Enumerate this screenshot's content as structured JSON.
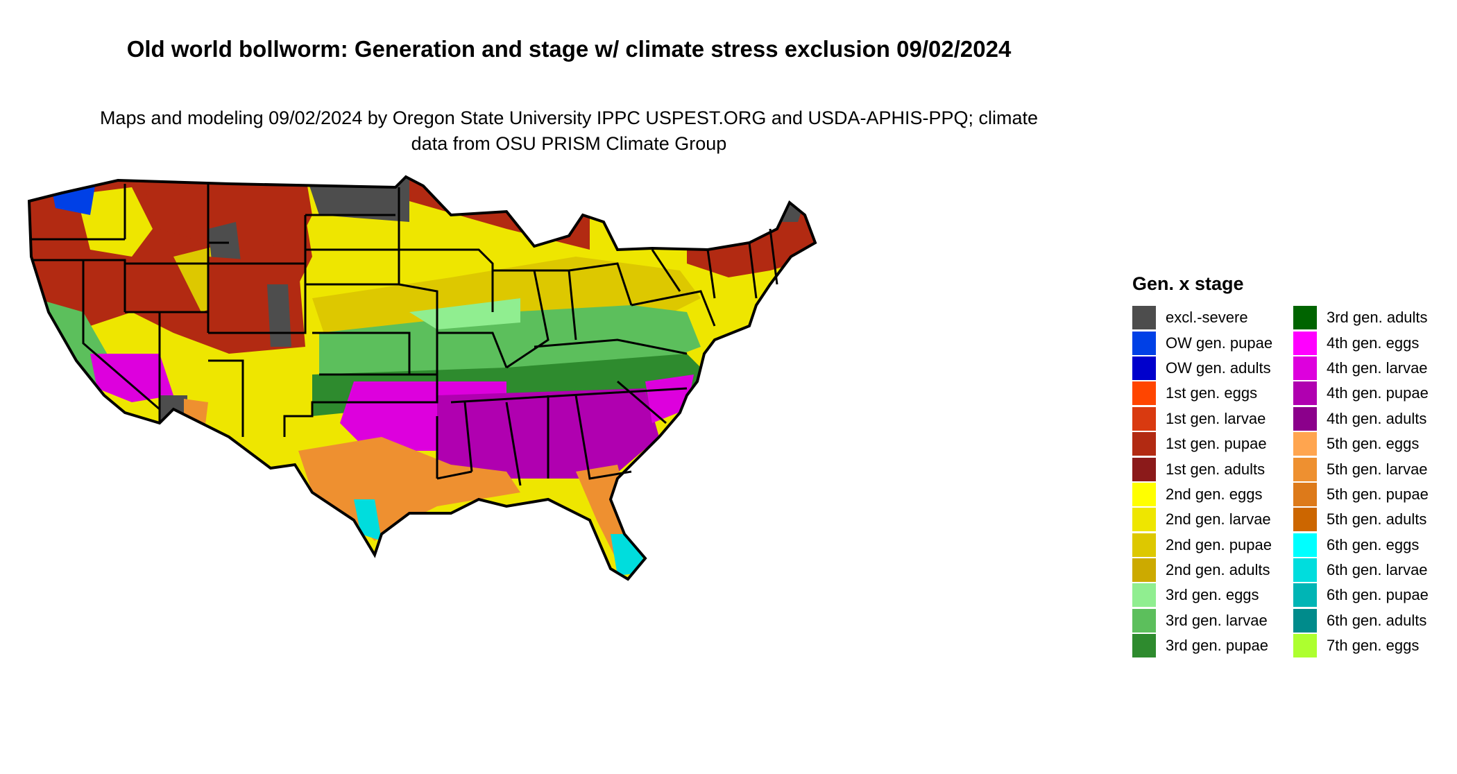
{
  "title": "Old world bollworm: Generation and stage w/ climate stress exclusion 09/02/2024",
  "subtitle": "Maps and modeling 09/02/2024 by Oregon State University IPPC USPEST.ORG and USDA-APHIS-PPQ; climate data from OSU PRISM Climate Group",
  "legend": {
    "title": "Gen. x stage",
    "column1": [
      {
        "label": "excl.-severe",
        "color": "#4d4d4d"
      },
      {
        "label": "OW gen. pupae",
        "color": "#0040e6"
      },
      {
        "label": "OW gen. adults",
        "color": "#0000cc"
      },
      {
        "label": "1st gen. eggs",
        "color": "#ff4500"
      },
      {
        "label": "1st gen. larvae",
        "color": "#d93a10"
      },
      {
        "label": "1st gen. pupae",
        "color": "#b22a12"
      },
      {
        "label": "1st gen. adults",
        "color": "#8b1a1a"
      },
      {
        "label": "2nd gen. eggs",
        "color": "#ffff00"
      },
      {
        "label": "2nd gen. larvae",
        "color": "#eee600"
      },
      {
        "label": "2nd gen. pupae",
        "color": "#ddc800"
      },
      {
        "label": "2nd gen. adults",
        "color": "#ccaa00"
      },
      {
        "label": "3rd gen. eggs",
        "color": "#90ee90"
      },
      {
        "label": "3rd gen. larvae",
        "color": "#5cbf5c"
      },
      {
        "label": "3rd gen. pupae",
        "color": "#2e8b2e"
      }
    ],
    "column2": [
      {
        "label": "3rd gen. adults",
        "color": "#006400"
      },
      {
        "label": "4th gen. eggs",
        "color": "#ff00ff"
      },
      {
        "label": "4th gen. larvae",
        "color": "#dd00dd"
      },
      {
        "label": "4th gen. pupae",
        "color": "#b000b0"
      },
      {
        "label": "4th gen. adults",
        "color": "#8b008b"
      },
      {
        "label": "5th gen. eggs",
        "color": "#ffa54f"
      },
      {
        "label": "5th gen. larvae",
        "color": "#ee9030"
      },
      {
        "label": "5th gen. pupae",
        "color": "#dd7a1a"
      },
      {
        "label": "5th gen. adults",
        "color": "#cc6600"
      },
      {
        "label": "6th gen. eggs",
        "color": "#00ffff"
      },
      {
        "label": "6th gen. larvae",
        "color": "#00dddd"
      },
      {
        "label": "6th gen. pupae",
        "color": "#00b5b5"
      },
      {
        "label": "6th gen. adults",
        "color": "#008b8b"
      },
      {
        "label": "7th gen. eggs",
        "color": "#adff2f"
      }
    ]
  },
  "map": {
    "region": "contiguous United States",
    "boundary_color": "#000000"
  }
}
